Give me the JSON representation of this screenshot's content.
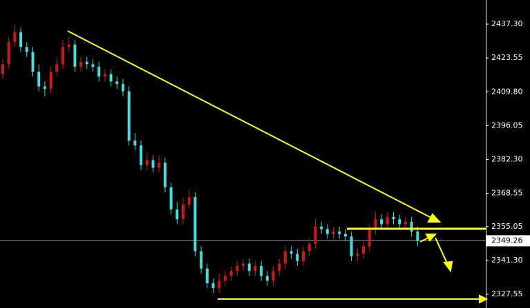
{
  "chart_data": {
    "type": "candlestick",
    "up_color": "#d01818",
    "down_color": "#40e0e0",
    "open": [
      2417,
      2421,
      2430,
      2434,
      2428,
      2426,
      2418,
      2412,
      2411,
      2418,
      2421,
      2428,
      2429,
      2420,
      2422,
      2421,
      2420,
      2416,
      2417,
      2414,
      2413,
      2410,
      2390,
      2388,
      2380,
      2382,
      2379,
      2381,
      2371,
      2362,
      2358,
      2364,
      2367,
      2345,
      2338,
      2332,
      2330,
      2333,
      2335,
      2337,
      2339,
      2340,
      2337,
      2339,
      2335,
      2333,
      2337,
      2340,
      2345,
      2344,
      2341,
      2345,
      2348,
      2355,
      2354,
      2352,
      2353,
      2352,
      2351,
      2343,
      2344,
      2347,
      2354,
      2358,
      2356,
      2359,
      2358,
      2356,
      2357,
      2353
    ],
    "high": [
      2423,
      2432,
      2437,
      2436,
      2430,
      2428,
      2421,
      2414,
      2420,
      2424,
      2431,
      2432,
      2431,
      2424,
      2424,
      2423,
      2422,
      2419,
      2419,
      2416,
      2415,
      2412,
      2393,
      2390,
      2385,
      2384,
      2384,
      2383,
      2373,
      2365,
      2367,
      2370,
      2369,
      2347,
      2340,
      2334,
      2336,
      2337,
      2339,
      2341,
      2342,
      2342,
      2341,
      2341,
      2337,
      2339,
      2342,
      2347,
      2347,
      2346,
      2347,
      2350,
      2358,
      2357,
      2356,
      2355,
      2355,
      2354,
      2353,
      2346,
      2349,
      2356,
      2361,
      2360,
      2361,
      2361,
      2360,
      2359,
      2359,
      2355
    ],
    "low": [
      2415,
      2419,
      2428,
      2426,
      2424,
      2416,
      2410,
      2408,
      2409,
      2416,
      2419,
      2426,
      2418,
      2418,
      2419,
      2418,
      2414,
      2414,
      2412,
      2411,
      2408,
      2388,
      2386,
      2378,
      2378,
      2377,
      2377,
      2369,
      2360,
      2356,
      2356,
      2362,
      2343,
      2336,
      2330,
      2328,
      2328,
      2331,
      2333,
      2335,
      2337,
      2335,
      2335,
      2333,
      2331,
      2331,
      2335,
      2338,
      2342,
      2339,
      2339,
      2343,
      2346,
      2352,
      2350,
      2350,
      2350,
      2349,
      2341,
      2341,
      2342,
      2345,
      2352,
      2354,
      2354,
      2356,
      2354,
      2354,
      2351,
      2347
    ],
    "close": [
      2421,
      2430,
      2434,
      2428,
      2426,
      2418,
      2412,
      2411,
      2418,
      2421,
      2428,
      2429,
      2420,
      2422,
      2421,
      2420,
      2416,
      2417,
      2414,
      2413,
      2410,
      2390,
      2388,
      2380,
      2382,
      2379,
      2381,
      2371,
      2362,
      2358,
      2364,
      2367,
      2345,
      2338,
      2332,
      2330,
      2333,
      2335,
      2337,
      2339,
      2340,
      2337,
      2339,
      2335,
      2333,
      2337,
      2340,
      2345,
      2344,
      2341,
      2345,
      2348,
      2355,
      2354,
      2352,
      2353,
      2352,
      2351,
      2343,
      2344,
      2347,
      2354,
      2358,
      2356,
      2359,
      2358,
      2356,
      2357,
      2353,
      2349.26
    ],
    "ylim": [
      2321.94,
      2447.12
    ],
    "yticks": [
      {
        "value": 2327.55,
        "label": "2327.55"
      },
      {
        "value": 2341.3,
        "label": "2341.30"
      },
      {
        "value": 2355.05,
        "label": "2355.05"
      },
      {
        "value": 2368.55,
        "label": "2368.55"
      },
      {
        "value": 2382.3,
        "label": "2382.30"
      },
      {
        "value": 2396.05,
        "label": "2396.05"
      },
      {
        "value": 2409.8,
        "label": "2409.80"
      },
      {
        "value": 2423.55,
        "label": "2423.55"
      },
      {
        "value": 2437.3,
        "label": "2437.30"
      }
    ],
    "last_price": 2349.26,
    "last_price_color": "#7fa0c8"
  }
}
